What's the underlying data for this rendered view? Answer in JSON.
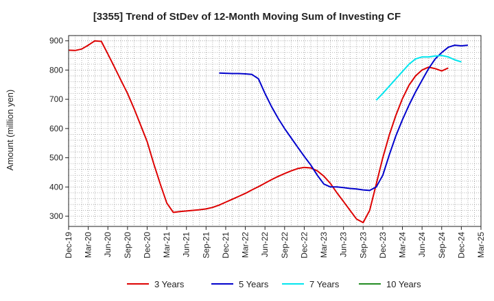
{
  "chart_data": {
    "type": "line",
    "title": "[3355]  Trend of StDev of 12-Month Moving Sum of Investing CF",
    "xlabel": "",
    "ylabel": "Amount (million yen)",
    "ylim": [
      265,
      918
    ],
    "yticks": [
      300,
      400,
      500,
      600,
      700,
      800,
      900
    ],
    "x_ticks": [
      "Dec-19",
      "Mar-20",
      "Jun-20",
      "Sep-20",
      "Dec-20",
      "Mar-21",
      "Jun-21",
      "Sep-21",
      "Dec-21",
      "Mar-22",
      "Jun-22",
      "Sep-22",
      "Dec-22",
      "Mar-23",
      "Jun-23",
      "Sep-23",
      "Dec-23",
      "Mar-24",
      "Jun-24",
      "Sep-24",
      "Dec-24",
      "Mar-25"
    ],
    "grid": true,
    "legend_position": "bottom",
    "series": [
      {
        "name": "3 Years",
        "color": "#dd0000",
        "start": "Dec-19",
        "values": [
          868,
          867,
          872,
          885,
          900,
          898,
          855,
          810,
          765,
          720,
          668,
          612,
          555,
          480,
          410,
          345,
          313,
          316,
          318,
          320,
          322,
          325,
          330,
          338,
          348,
          358,
          368,
          378,
          390,
          401,
          413,
          425,
          436,
          446,
          455,
          463,
          467,
          465,
          455,
          437,
          412,
          380,
          350,
          320,
          290,
          278,
          320,
          410,
          500,
          578,
          645,
          702,
          748,
          780,
          800,
          810,
          805,
          797,
          807
        ]
      },
      {
        "name": "5 Years",
        "color": "#0000cc",
        "start": "Nov-21",
        "values": [
          790,
          789,
          788,
          788,
          787,
          785,
          770,
          720,
          675,
          635,
          600,
          568,
          536,
          505,
          475,
          440,
          410,
          400,
          400,
          398,
          395,
          393,
          390,
          388,
          400,
          440,
          510,
          575,
          630,
          680,
          725,
          765,
          805,
          838,
          860,
          878,
          885,
          883,
          885
        ]
      },
      {
        "name": "7 Years",
        "color": "#00e5ee",
        "start": "Nov-23",
        "values": [
          697,
          720,
          745,
          770,
          795,
          820,
          838,
          845,
          845,
          848,
          850,
          845,
          835,
          828
        ]
      },
      {
        "name": "10 Years",
        "color": "#228b22",
        "start": "Dec-24",
        "values": []
      }
    ]
  }
}
